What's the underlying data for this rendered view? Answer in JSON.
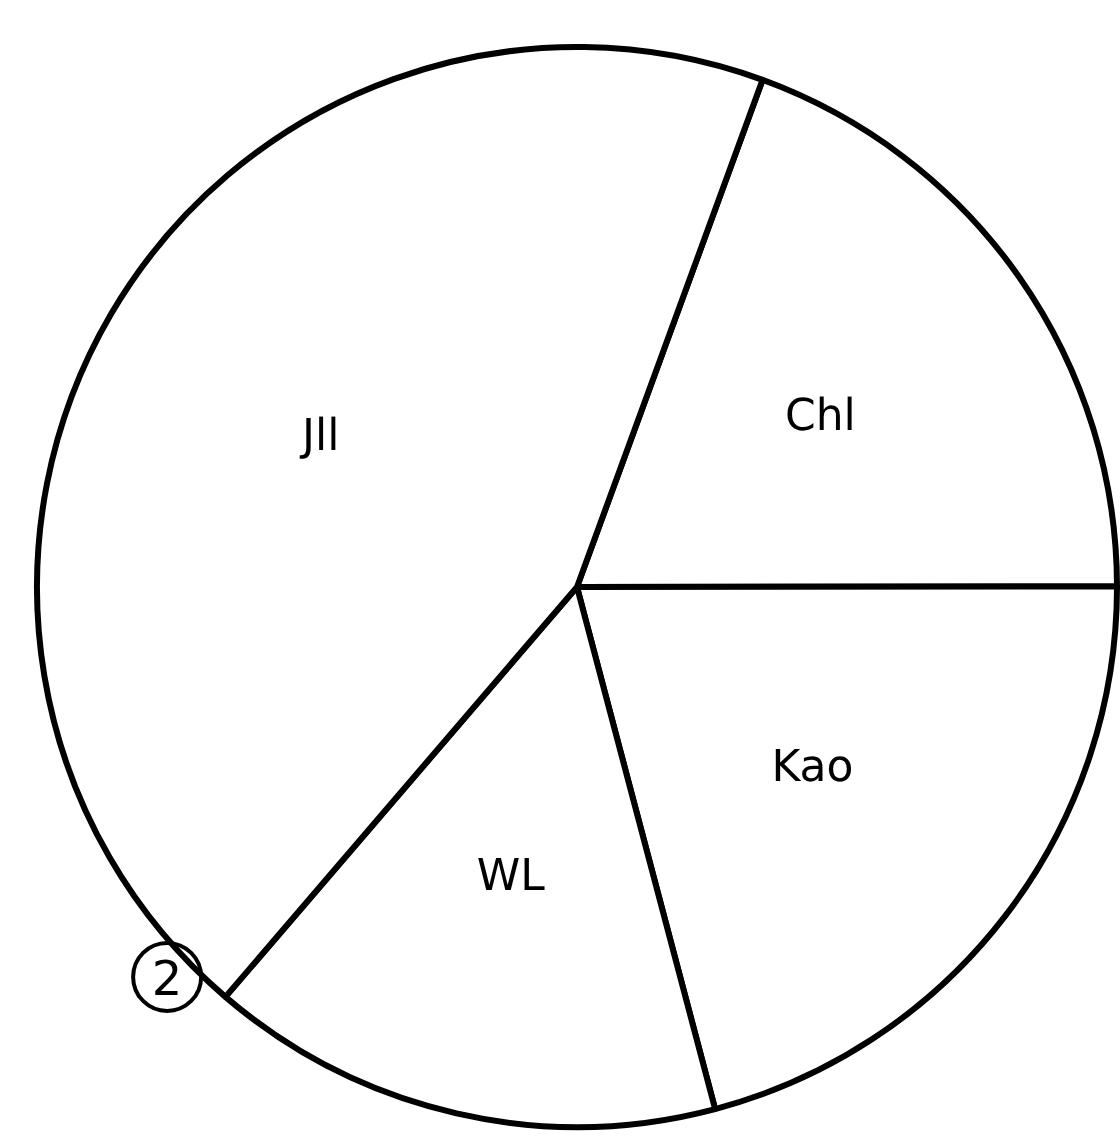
{
  "chart_data": {
    "type": "pie",
    "categories": [
      "Chl",
      "Kao",
      "WL",
      "Jll"
    ],
    "values": [
      19.4,
      20.9,
      15.4,
      44.3
    ],
    "colors": [
      "#ffffff",
      "#ffffff",
      "#ffffff",
      "#ffffff"
    ],
    "annotations": [
      "2"
    ]
  }
}
